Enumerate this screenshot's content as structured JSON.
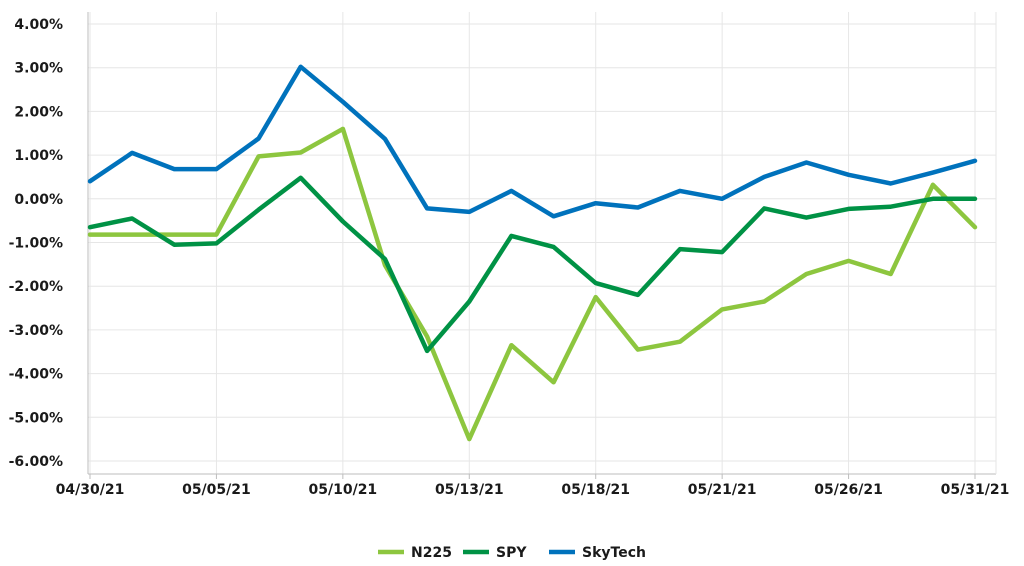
{
  "chart_data": {
    "type": "line",
    "title": "",
    "xlabel": "",
    "ylabel": "",
    "ylim": [
      -6.25,
      4.0
    ],
    "yticks": [
      4,
      3,
      2,
      1,
      0,
      -1,
      -2,
      -3,
      -4,
      -5,
      -6
    ],
    "ytick_labels": [
      "4.00%",
      "3.00%",
      "2.00%",
      "1.00%",
      "0.00%",
      "-1.00%",
      "-2.00%",
      "-3.00%",
      "-4.00%",
      "-5.00%",
      "-6.00%"
    ],
    "x": [
      "04/30/21",
      "05/03/21",
      "05/04/21",
      "05/05/21",
      "05/06/21",
      "05/07/21",
      "05/10/21",
      "05/11/21",
      "05/12/21",
      "05/13/21",
      "05/14/21",
      "05/17/21",
      "05/18/21",
      "05/19/21",
      "05/20/21",
      "05/21/21",
      "05/24/21",
      "05/25/21",
      "05/26/21",
      "05/27/21",
      "05/28/21",
      "05/31/21"
    ],
    "xtick_labels": [
      "04/30/21",
      "05/05/21",
      "05/10/21",
      "05/13/21",
      "05/18/21",
      "05/21/21",
      "05/26/21",
      "05/31/21"
    ],
    "xtick_index": [
      0,
      3,
      6,
      9,
      12,
      15,
      18,
      21
    ],
    "grid": true,
    "legend_position": "bottom",
    "series": [
      {
        "name": "N225",
        "color": "#8dc63f",
        "values": [
          -0.82,
          -0.82,
          -0.82,
          -0.82,
          0.97,
          1.06,
          1.6,
          -1.52,
          -3.15,
          -5.5,
          -3.35,
          -4.2,
          -2.25,
          -3.45,
          -3.27,
          -2.53,
          -2.35,
          -1.72,
          -1.42,
          -1.72,
          0.32,
          -0.65
        ]
      },
      {
        "name": "SPY",
        "color": "#009245",
        "values": [
          -0.65,
          -0.45,
          -1.05,
          -1.02,
          -0.25,
          0.48,
          -0.52,
          -1.38,
          -3.48,
          -2.35,
          -0.85,
          -1.1,
          -1.93,
          -2.2,
          -1.15,
          -1.22,
          -0.22,
          -0.43,
          -0.23,
          -0.18,
          0.0,
          0.0
        ]
      },
      {
        "name": "SkyTech",
        "color": "#0072bc",
        "values": [
          0.4,
          1.05,
          0.68,
          0.68,
          1.38,
          3.02,
          2.22,
          1.37,
          -0.22,
          -0.3,
          0.18,
          -0.4,
          -0.1,
          -0.2,
          0.18,
          0.0,
          0.5,
          0.83,
          0.55,
          0.35,
          0.6,
          0.87
        ]
      }
    ]
  }
}
